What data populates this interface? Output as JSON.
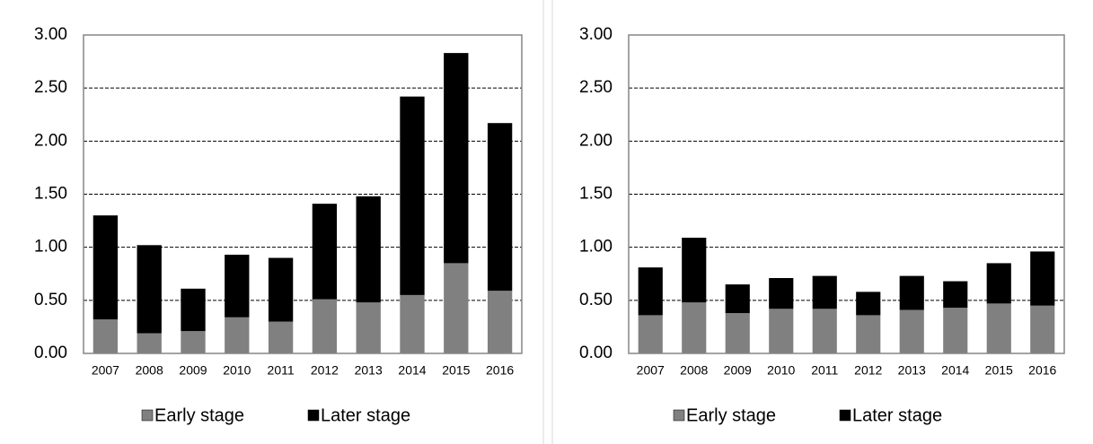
{
  "chart_data": [
    {
      "type": "stacked_bar",
      "categories": [
        "2007",
        "2008",
        "2009",
        "2010",
        "2011",
        "2012",
        "2013",
        "2014",
        "2015",
        "2016"
      ],
      "series": [
        {
          "name": "Early stage",
          "color": "#808080",
          "values": [
            0.32,
            0.19,
            0.21,
            0.34,
            0.3,
            0.51,
            0.48,
            0.55,
            0.85,
            0.59
          ]
        },
        {
          "name": "Later stage",
          "color": "#000000",
          "values": [
            0.98,
            0.83,
            0.4,
            0.59,
            0.6,
            0.9,
            1.0,
            1.87,
            1.98,
            1.58
          ]
        }
      ],
      "ylim": [
        0,
        3
      ],
      "yticks": [
        {
          "value": 0,
          "label": "0.00"
        },
        {
          "value": 0.5,
          "label": "0.50"
        },
        {
          "value": 1,
          "label": "1.00"
        },
        {
          "value": 1.5,
          "label": "1.50"
        },
        {
          "value": 2,
          "label": "2.00"
        },
        {
          "value": 2.5,
          "label": "2.50"
        },
        {
          "value": 3,
          "label": "3.00"
        }
      ],
      "grid": true,
      "legend": "bottom"
    },
    {
      "type": "stacked_bar",
      "categories": [
        "2007",
        "2008",
        "2009",
        "2010",
        "2011",
        "2012",
        "2013",
        "2014",
        "2015",
        "2016"
      ],
      "series": [
        {
          "name": "Early stage",
          "color": "#808080",
          "values": [
            0.36,
            0.48,
            0.38,
            0.42,
            0.42,
            0.36,
            0.41,
            0.43,
            0.47,
            0.45
          ]
        },
        {
          "name": "Later stage",
          "color": "#000000",
          "values": [
            0.45,
            0.61,
            0.27,
            0.29,
            0.31,
            0.22,
            0.32,
            0.25,
            0.38,
            0.51
          ]
        }
      ],
      "ylim": [
        0,
        3
      ],
      "yticks": [
        {
          "value": 0,
          "label": "0.00"
        },
        {
          "value": 0.5,
          "label": "0.50"
        },
        {
          "value": 1,
          "label": "1.00"
        },
        {
          "value": 1.5,
          "label": "1.50"
        },
        {
          "value": 2,
          "label": "2.00"
        },
        {
          "value": 2.5,
          "label": "2.50"
        },
        {
          "value": 3,
          "label": "3.00"
        }
      ],
      "grid": true,
      "legend": "bottom"
    }
  ]
}
